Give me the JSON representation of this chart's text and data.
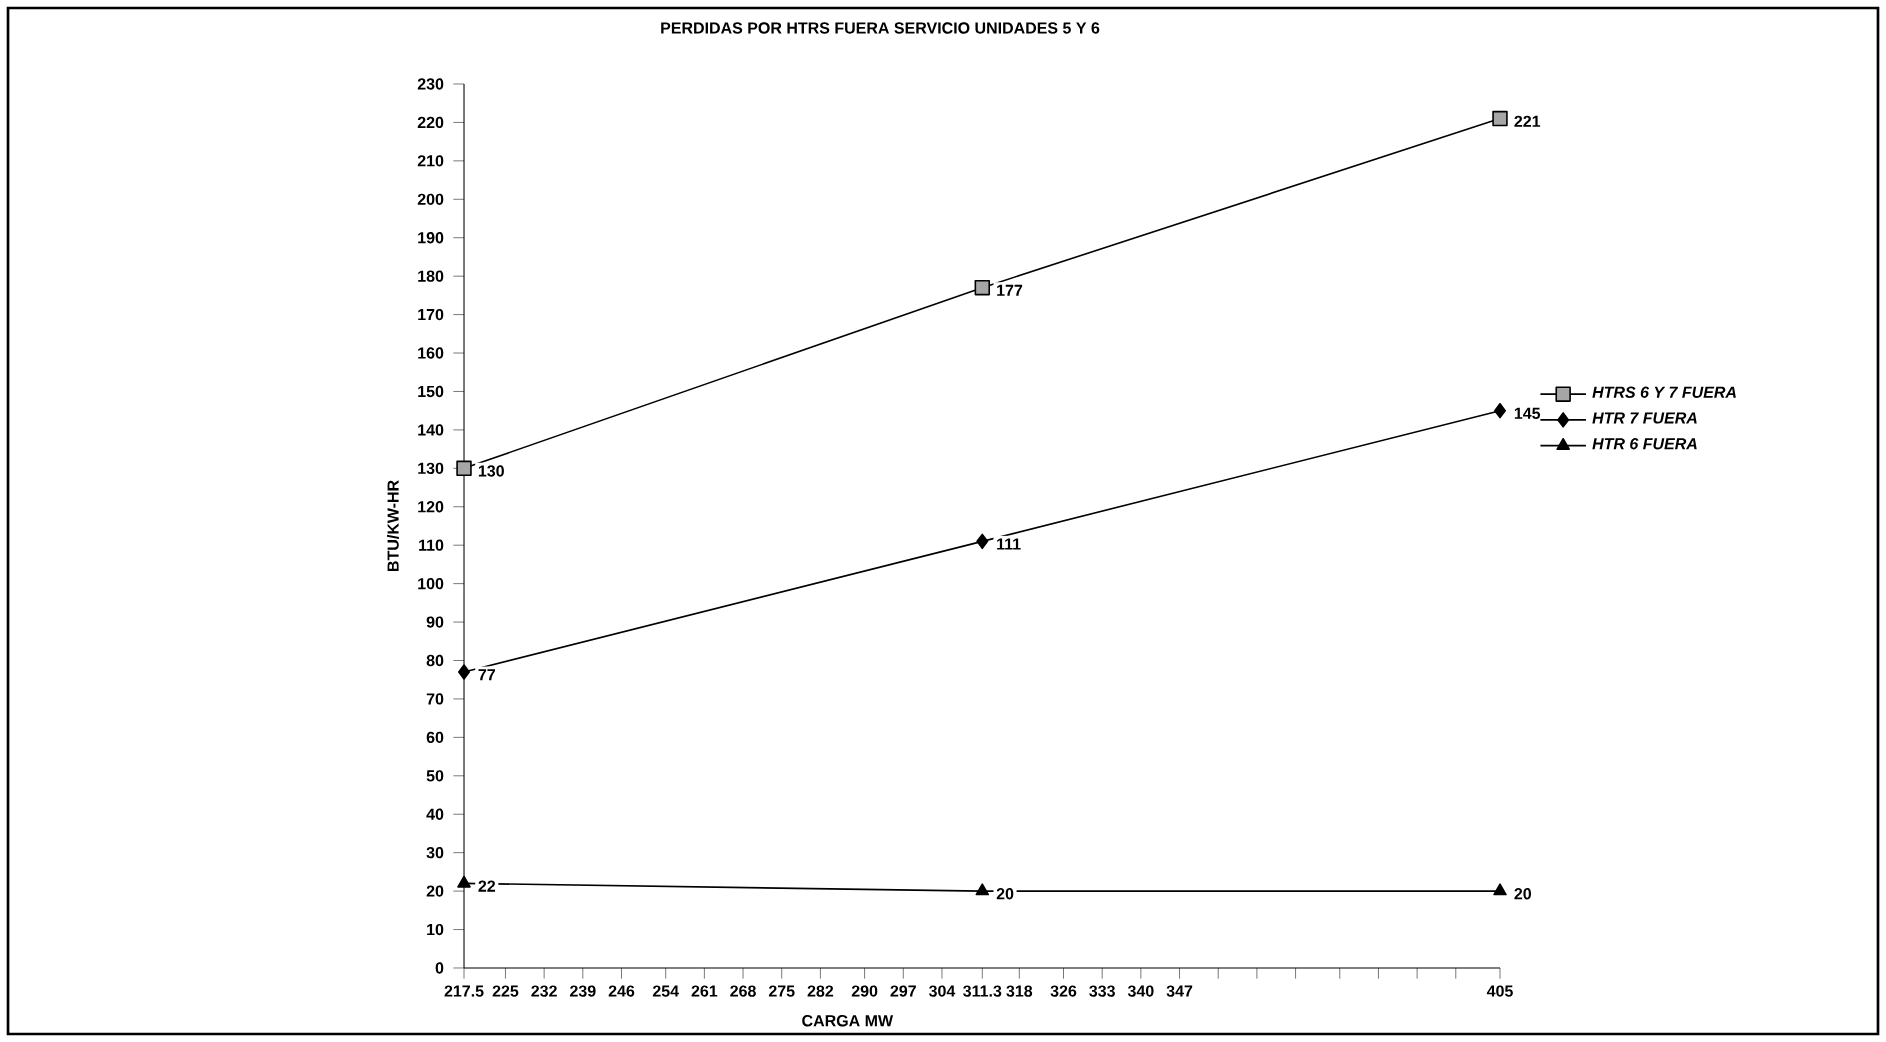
{
  "chart_data": {
    "type": "line",
    "title": "PERDIDAS POR HTRS FUERA SERVICIO UNIDADES 5 Y 6",
    "xlabel": "CARGA MW",
    "ylabel": "BTU/KW-HR",
    "x": [
      217.5,
      311.3,
      405
    ],
    "series": [
      {
        "name": "HTRS 6 Y 7 FUERA",
        "color": "#000000",
        "marker": "square",
        "values": [
          130,
          177,
          221
        ]
      },
      {
        "name": "HTR 7 FUERA",
        "color": "#000000",
        "marker": "diamond",
        "values": [
          77,
          111,
          145
        ]
      },
      {
        "name": "HTR 6 FUERA",
        "color": "#000000",
        "marker": "triangle",
        "values": [
          22,
          20,
          20
        ]
      }
    ],
    "xlim": [
      217.5,
      405
    ],
    "ylim": [
      0,
      230
    ],
    "xticks": [
      217.5,
      {
        "value": 225,
        "label": "225"
      },
      {
        "value": 232,
        "label": "232"
      },
      {
        "value": 239,
        "label": "239"
      },
      {
        "value": 246,
        "label": "246"
      },
      {
        "value": 254,
        "label": "254"
      },
      {
        "value": 261,
        "label": "261"
      },
      {
        "value": 268,
        "label": "268"
      },
      {
        "value": 275,
        "label": "275"
      },
      {
        "value": 282,
        "label": "282"
      },
      {
        "value": 290,
        "label": "290"
      },
      {
        "value": 297,
        "label": "297"
      },
      {
        "value": 304,
        "label": "304"
      },
      311.3,
      {
        "value": 318,
        "label": "318"
      },
      {
        "value": 326,
        "label": "326"
      },
      {
        "value": 333,
        "label": "333"
      },
      {
        "value": 340,
        "label": "340"
      },
      {
        "value": 347,
        "label": "347"
      },
      {
        "value": 354,
        "label": null
      },
      {
        "value": 361,
        "label": null
      },
      {
        "value": 368,
        "label": null
      },
      {
        "value": 376,
        "label": null
      },
      {
        "value": 383,
        "label": null
      },
      {
        "value": 390,
        "label": null
      },
      {
        "value": 397,
        "label": null
      },
      405
    ],
    "yticks": [
      0,
      10,
      20,
      30,
      40,
      50,
      60,
      70,
      80,
      90,
      100,
      110,
      120,
      130,
      140,
      150,
      160,
      170,
      180,
      190,
      200,
      210,
      220,
      230
    ],
    "grid": false,
    "legend": "right",
    "data_labels": true,
    "line_style": "solid"
  }
}
